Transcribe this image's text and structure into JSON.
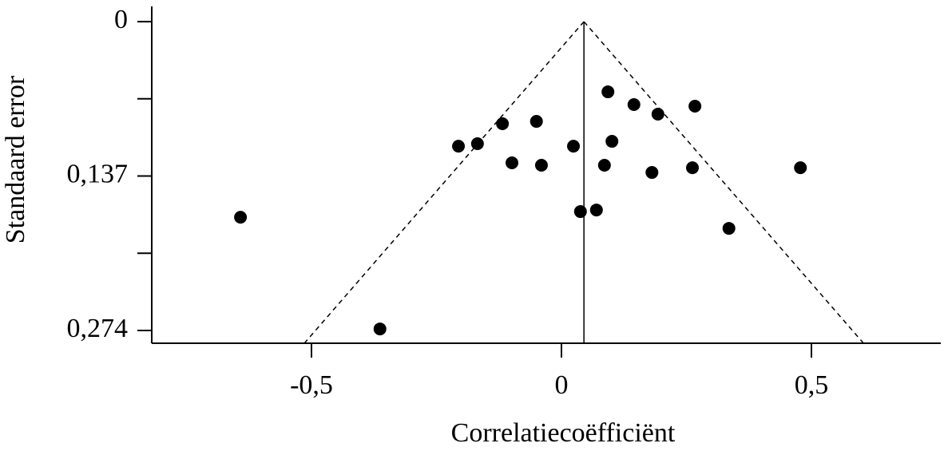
{
  "chart_data": {
    "type": "scatter",
    "x_label": "Correlatiecoëfficiënt",
    "y_label": "Standaard error",
    "xlim": [
      -0.8195,
      0.7588
    ],
    "ylim": [
      -0.0135,
      0.2853
    ],
    "y_reversed": true,
    "xticks": [
      {
        "value": -0.5,
        "label": "-0,5"
      },
      0,
      {
        "value": 0.5,
        "label": "0,5"
      }
    ],
    "yticks": [
      0,
      {
        "value": 0.137,
        "label": "0,137"
      },
      {
        "value": 0.274,
        "label": "0,274"
      }
    ],
    "yminorticks": [
      0.0685,
      0.2055
    ],
    "funnel": {
      "center": 0.045,
      "z": 1.96
    },
    "color": "#000000",
    "x": [
      -0.642,
      -0.363,
      -0.206,
      -0.168,
      -0.118,
      -0.099,
      -0.05,
      -0.04,
      0.024,
      0.038,
      0.07,
      0.086,
      0.093,
      0.101,
      0.145,
      0.181,
      0.193,
      0.262,
      0.267,
      0.335,
      0.478
    ],
    "values": [
      0.1735,
      0.2726,
      0.1105,
      0.1083,
      0.0906,
      0.1253,
      0.0885,
      0.1274,
      0.1105,
      0.1685,
      0.1671,
      0.1274,
      0.0623,
      0.1062,
      0.0736,
      0.1338,
      0.0821,
      0.1296,
      0.075,
      0.1834,
      0.1296
    ]
  }
}
